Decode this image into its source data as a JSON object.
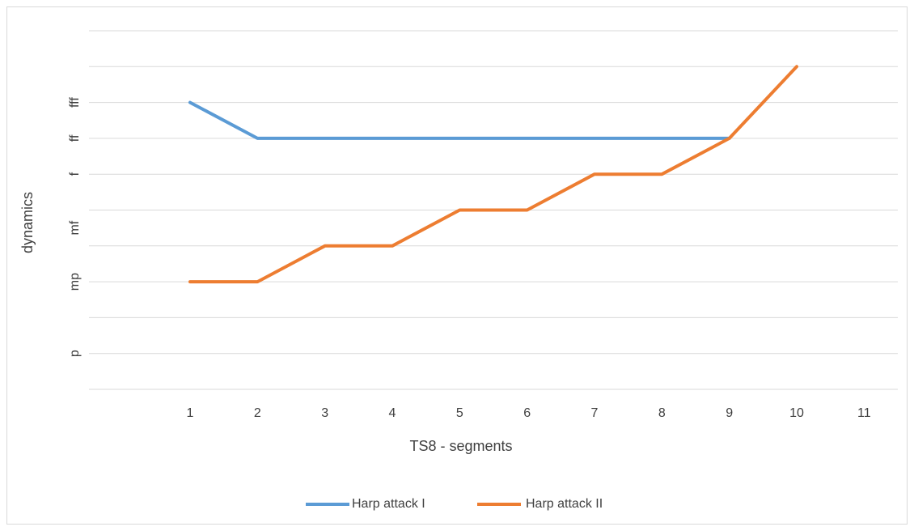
{
  "chart_data": {
    "type": "line",
    "x_label": "TS8 - segments",
    "y_label": "dynamics",
    "categories": [
      null,
      "1",
      "2",
      "3",
      "4",
      "5",
      "6",
      "7",
      "8",
      "9",
      "10",
      "11"
    ],
    "series": [
      {
        "name": "Harp attack I",
        "color": "#5b9bd5",
        "values": [
          null,
          8,
          7,
          7,
          7,
          7,
          7,
          7,
          7,
          7,
          null,
          null
        ]
      },
      {
        "name": "Harp attack II",
        "color": "#ed7d31",
        "values": [
          null,
          3,
          3,
          4,
          4,
          5,
          5,
          6,
          6,
          7,
          9,
          null
        ]
      }
    ],
    "ylim": [
      0,
      10
    ],
    "ygrid": [
      0,
      1,
      2,
      3,
      4,
      5,
      6,
      7,
      8,
      9,
      10
    ],
    "yticks": [
      {
        "value": 1,
        "label": "p"
      },
      {
        "value": 3,
        "label": "mp"
      },
      {
        "value": 4.5,
        "label": "mf"
      },
      {
        "value": 6,
        "label": "f"
      },
      {
        "value": 7,
        "label": "ff"
      },
      {
        "value": 8,
        "label": "fff"
      }
    ],
    "grid": true,
    "legend": "bottom"
  }
}
